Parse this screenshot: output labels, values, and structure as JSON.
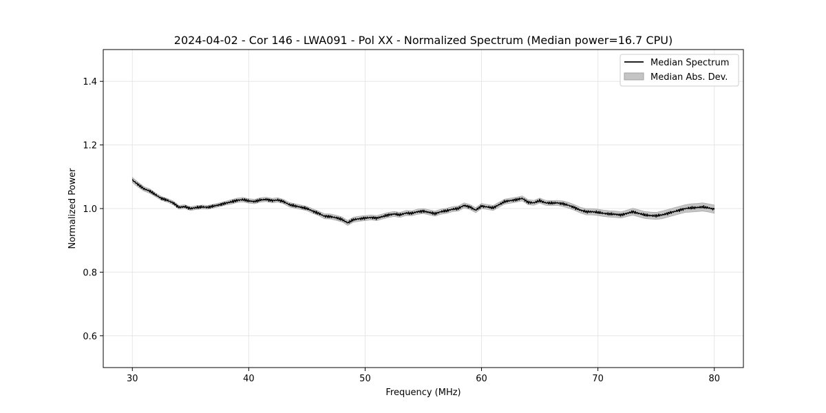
{
  "chart_data": {
    "type": "line",
    "title": "2024-04-02 - Cor 146 - LWA091 - Pol XX - Normalized Spectrum (Median power=16.7 CPU)",
    "xlabel": "Frequency (MHz)",
    "ylabel": "Normalized Power",
    "xlim": [
      27.5,
      82.5
    ],
    "ylim": [
      0.5,
      1.5
    ],
    "xticks": [
      30,
      40,
      50,
      60,
      70,
      80
    ],
    "xtick_labels": [
      "30",
      "40",
      "50",
      "60",
      "70",
      "80"
    ],
    "yticks": [
      0.6,
      0.8,
      1.0,
      1.2,
      1.4
    ],
    "ytick_labels": [
      "0.6",
      "0.8",
      "1.0",
      "1.2",
      "1.4"
    ],
    "grid": true,
    "legend_position": "top-right",
    "legend": [
      "Median Spectrum",
      "Median Abs. Dev."
    ],
    "colors": {
      "line": "#000000",
      "band": "#c4c4c4",
      "band_edge": "#a0a0a0",
      "grid": "#e6e6e6"
    },
    "series": [
      {
        "name": "Median Spectrum",
        "x": [
          30.0,
          30.5,
          31.0,
          31.5,
          32.0,
          32.5,
          33.0,
          33.5,
          34.0,
          34.5,
          35.0,
          35.5,
          36.0,
          36.5,
          37.0,
          37.5,
          38.0,
          38.5,
          39.0,
          39.5,
          40.0,
          40.5,
          41.0,
          41.5,
          42.0,
          42.5,
          43.0,
          43.5,
          44.0,
          44.5,
          45.0,
          45.5,
          46.0,
          46.5,
          47.0,
          47.5,
          48.0,
          48.5,
          49.0,
          49.5,
          50.0,
          50.5,
          51.0,
          51.5,
          52.0,
          52.5,
          53.0,
          53.5,
          54.0,
          54.5,
          55.0,
          55.5,
          56.0,
          56.5,
          57.0,
          57.5,
          58.0,
          58.5,
          59.0,
          59.5,
          60.0,
          60.5,
          61.0,
          61.5,
          62.0,
          62.5,
          63.0,
          63.5,
          64.0,
          64.5,
          65.0,
          65.5,
          66.0,
          66.5,
          67.0,
          67.5,
          68.0,
          68.5,
          69.0,
          69.5,
          70.0,
          70.5,
          71.0,
          71.5,
          72.0,
          72.5,
          73.0,
          73.5,
          74.0,
          74.5,
          75.0,
          75.5,
          76.0,
          76.5,
          77.0,
          77.5,
          78.0,
          78.5,
          79.0,
          79.5,
          80.0
        ],
        "values": [
          1.09,
          1.075,
          1.062,
          1.055,
          1.043,
          1.032,
          1.026,
          1.018,
          1.004,
          1.006,
          1.0,
          1.003,
          1.005,
          1.004,
          1.008,
          1.012,
          1.017,
          1.021,
          1.026,
          1.028,
          1.024,
          1.022,
          1.027,
          1.029,
          1.025,
          1.027,
          1.022,
          1.012,
          1.008,
          1.004,
          1.0,
          0.992,
          0.985,
          0.976,
          0.975,
          0.971,
          0.966,
          0.955,
          0.965,
          0.968,
          0.97,
          0.972,
          0.97,
          0.975,
          0.98,
          0.983,
          0.98,
          0.986,
          0.985,
          0.99,
          0.992,
          0.988,
          0.984,
          0.99,
          0.993,
          0.998,
          1.0,
          1.01,
          1.005,
          0.995,
          1.008,
          1.005,
          1.002,
          1.012,
          1.022,
          1.025,
          1.028,
          1.032,
          1.02,
          1.018,
          1.025,
          1.018,
          1.017,
          1.018,
          1.015,
          1.01,
          1.003,
          0.995,
          0.99,
          0.99,
          0.988,
          0.985,
          0.983,
          0.982,
          0.98,
          0.985,
          0.99,
          0.985,
          0.98,
          0.978,
          0.977,
          0.98,
          0.985,
          0.99,
          0.995,
          1.0,
          1.002,
          1.003,
          1.005,
          1.002,
          0.998
        ]
      },
      {
        "name": "Median Abs. Dev.",
        "values": [
          0.008,
          0.008,
          0.007,
          0.007,
          0.006,
          0.006,
          0.006,
          0.006,
          0.006,
          0.006,
          0.006,
          0.006,
          0.006,
          0.006,
          0.006,
          0.006,
          0.006,
          0.007,
          0.007,
          0.007,
          0.007,
          0.007,
          0.007,
          0.007,
          0.007,
          0.007,
          0.007,
          0.007,
          0.007,
          0.007,
          0.007,
          0.007,
          0.007,
          0.008,
          0.008,
          0.008,
          0.008,
          0.008,
          0.008,
          0.008,
          0.008,
          0.008,
          0.008,
          0.008,
          0.008,
          0.008,
          0.008,
          0.008,
          0.008,
          0.008,
          0.008,
          0.008,
          0.008,
          0.008,
          0.008,
          0.008,
          0.008,
          0.008,
          0.008,
          0.008,
          0.008,
          0.008,
          0.008,
          0.008,
          0.008,
          0.008,
          0.008,
          0.008,
          0.008,
          0.008,
          0.008,
          0.008,
          0.008,
          0.008,
          0.009,
          0.009,
          0.009,
          0.009,
          0.01,
          0.01,
          0.01,
          0.01,
          0.01,
          0.01,
          0.01,
          0.01,
          0.011,
          0.011,
          0.011,
          0.011,
          0.011,
          0.012,
          0.012,
          0.012,
          0.012,
          0.012,
          0.013,
          0.013,
          0.013,
          0.013,
          0.013
        ]
      }
    ]
  }
}
